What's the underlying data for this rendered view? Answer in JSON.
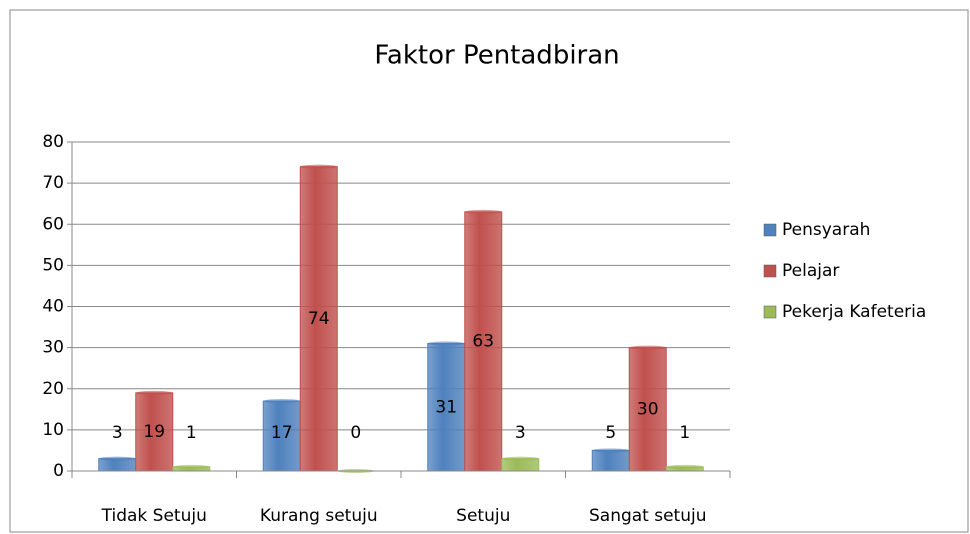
{
  "chart_data": {
    "type": "bar",
    "title": "Faktor Pentadbiran",
    "categories": [
      "Tidak Setuju",
      "Kurang setuju",
      "Setuju",
      "Sangat setuju"
    ],
    "series": [
      {
        "name": "Pensyarah",
        "color": "#4f81bd",
        "values": [
          3,
          17,
          31,
          5
        ]
      },
      {
        "name": "Pelajar",
        "color": "#c0504d",
        "values": [
          19,
          74,
          63,
          30
        ]
      },
      {
        "name": "Pekerja Kafeteria",
        "color": "#9bbb59",
        "values": [
          1,
          0,
          3,
          1
        ]
      }
    ],
    "ylim": [
      0,
      80
    ],
    "yticks": [
      0,
      10,
      20,
      30,
      40,
      50,
      60,
      70,
      80
    ],
    "grid": true,
    "legend": "right"
  }
}
